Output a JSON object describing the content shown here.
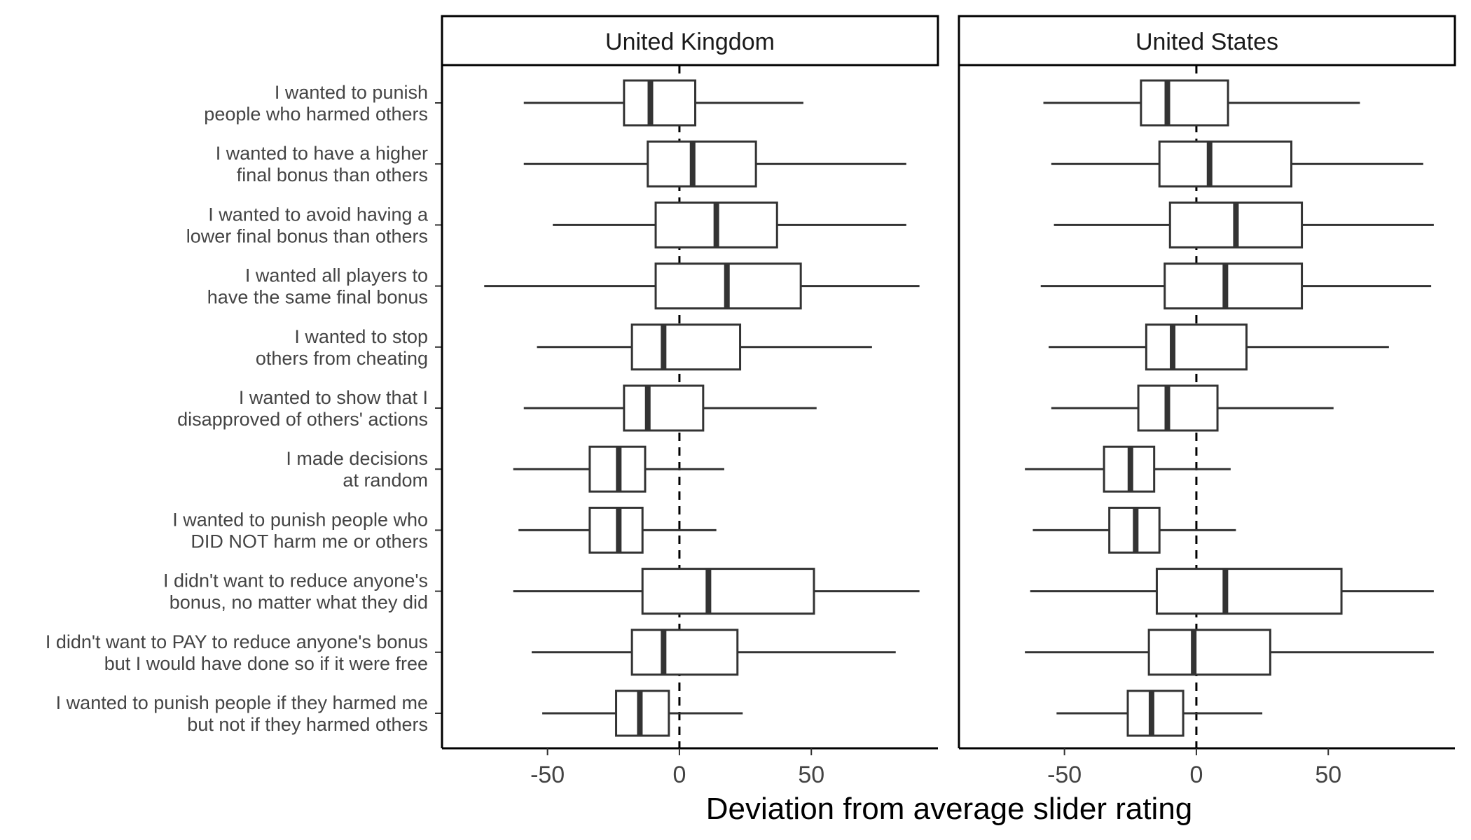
{
  "chart_data": {
    "type": "boxplot",
    "orientation": "horizontal",
    "xlabel": "Deviation from average slider rating",
    "xlim": [
      -90,
      98
    ],
    "xticks": [
      -50,
      0,
      50
    ],
    "xtick_labels": [
      "-50",
      "0",
      "50"
    ],
    "reference_line": {
      "x": 0,
      "style": "dashed"
    },
    "grid": false,
    "box_color": "#333333",
    "categories": [
      [
        "I wanted to punish",
        "people who harmed others"
      ],
      [
        "I wanted to have a higher",
        "final bonus than others"
      ],
      [
        "I wanted to avoid having a",
        "lower final bonus than others"
      ],
      [
        "I wanted all players to",
        "have the same final bonus"
      ],
      [
        "I wanted to stop",
        "others from cheating"
      ],
      [
        "I wanted to show that I",
        "disapproved of others' actions"
      ],
      [
        "I made decisions",
        "at random"
      ],
      [
        "I wanted to punish people who",
        "DID NOT harm me or others"
      ],
      [
        "I didn't want to reduce anyone's",
        "bonus, no matter what they did"
      ],
      [
        "I didn't want to PAY to reduce anyone's bonus",
        "but I would have done so if it were free"
      ],
      [
        "I wanted to punish people if they harmed me",
        "but not if they harmed others"
      ]
    ],
    "panels": [
      {
        "name": "United Kingdom",
        "boxes": [
          {
            "whisker_low": -59,
            "q1": -21,
            "median": -11,
            "q3": 6,
            "whisker_high": 47
          },
          {
            "whisker_low": -59,
            "q1": -12,
            "median": 5,
            "q3": 29,
            "whisker_high": 86
          },
          {
            "whisker_low": -48,
            "q1": -9,
            "median": 14,
            "q3": 37,
            "whisker_high": 86
          },
          {
            "whisker_low": -74,
            "q1": -9,
            "median": 18,
            "q3": 46,
            "whisker_high": 91
          },
          {
            "whisker_low": -54,
            "q1": -18,
            "median": -6,
            "q3": 23,
            "whisker_high": 73
          },
          {
            "whisker_low": -59,
            "q1": -21,
            "median": -12,
            "q3": 9,
            "whisker_high": 52
          },
          {
            "whisker_low": -63,
            "q1": -34,
            "median": -23,
            "q3": -13,
            "whisker_high": 17
          },
          {
            "whisker_low": -61,
            "q1": -34,
            "median": -23,
            "q3": -14,
            "whisker_high": 14
          },
          {
            "whisker_low": -63,
            "q1": -14,
            "median": 11,
            "q3": 51,
            "whisker_high": 91
          },
          {
            "whisker_low": -56,
            "q1": -18,
            "median": -6,
            "q3": 22,
            "whisker_high": 82
          },
          {
            "whisker_low": -52,
            "q1": -24,
            "median": -15,
            "q3": -4,
            "whisker_high": 24
          }
        ]
      },
      {
        "name": "United States",
        "boxes": [
          {
            "whisker_low": -58,
            "q1": -21,
            "median": -11,
            "q3": 12,
            "whisker_high": 62
          },
          {
            "whisker_low": -55,
            "q1": -14,
            "median": 5,
            "q3": 36,
            "whisker_high": 86
          },
          {
            "whisker_low": -54,
            "q1": -10,
            "median": 15,
            "q3": 40,
            "whisker_high": 90
          },
          {
            "whisker_low": -59,
            "q1": -12,
            "median": 11,
            "q3": 40,
            "whisker_high": 89
          },
          {
            "whisker_low": -56,
            "q1": -19,
            "median": -9,
            "q3": 19,
            "whisker_high": 73
          },
          {
            "whisker_low": -55,
            "q1": -22,
            "median": -11,
            "q3": 8,
            "whisker_high": 52
          },
          {
            "whisker_low": -65,
            "q1": -35,
            "median": -25,
            "q3": -16,
            "whisker_high": 13
          },
          {
            "whisker_low": -62,
            "q1": -33,
            "median": -23,
            "q3": -14,
            "whisker_high": 15
          },
          {
            "whisker_low": -63,
            "q1": -15,
            "median": 11,
            "q3": 55,
            "whisker_high": 90
          },
          {
            "whisker_low": -65,
            "q1": -18,
            "median": -1,
            "q3": 28,
            "whisker_high": 90
          },
          {
            "whisker_low": -53,
            "q1": -26,
            "median": -17,
            "q3": -5,
            "whisker_high": 25
          }
        ]
      }
    ]
  }
}
